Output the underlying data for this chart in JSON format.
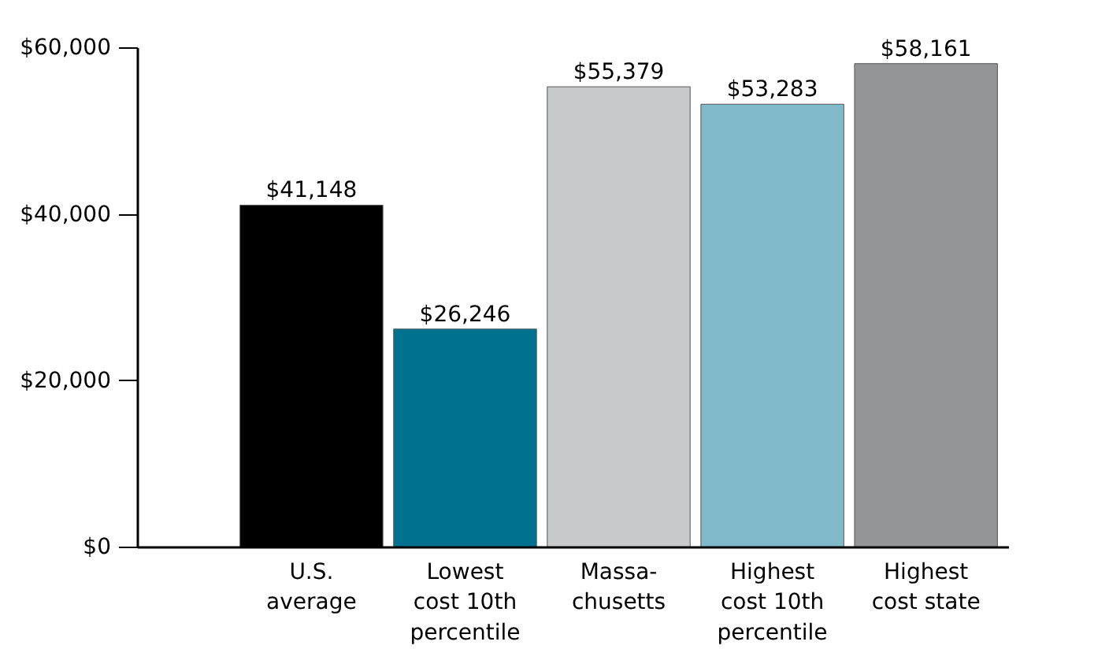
{
  "chart_data": {
    "type": "bar",
    "categories": [
      "U.S.\naverage",
      "Lowest\ncost 10th\npercentile",
      "Massa-\nchusetts",
      "Highest\ncost 10th\npercentile",
      "Highest\ncost state"
    ],
    "values": [
      41148,
      26246,
      55379,
      53283,
      58161
    ],
    "colors": [
      "#000000",
      "#00718e",
      "#c8c9cb",
      "#80b9c9",
      "#949598"
    ],
    "value_labels": [
      "$41,148",
      "$26,246",
      "$55,379",
      "$53,283",
      "$58,161"
    ],
    "ylim": [
      0,
      60000
    ],
    "yticks": [
      {
        "value": 0,
        "label": "$0"
      },
      {
        "value": 20000,
        "label": "$20,000"
      },
      {
        "value": 40000,
        "label": "$40,000"
      },
      {
        "value": 60000,
        "label": "$60,000"
      }
    ],
    "grid": false
  }
}
